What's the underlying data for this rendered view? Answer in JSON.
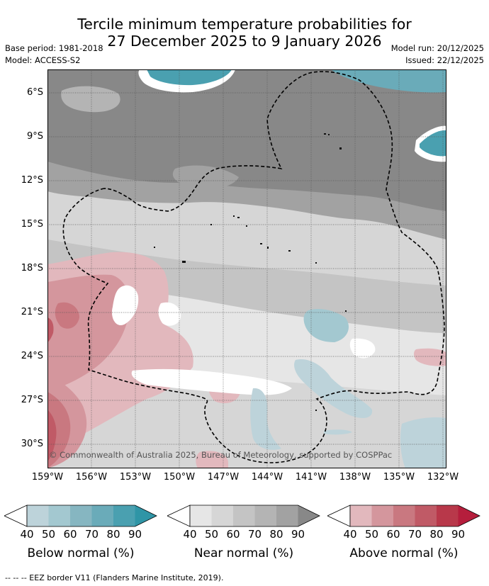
{
  "header": {
    "title_line1": "Tercile minimum temperature probabilities for",
    "title_line2": "27 December 2025 to 9 January 2026",
    "base_period": "Base period: 1981-2018",
    "model": "Model: ACCESS-S2",
    "model_run": "Model run: 20/12/2025",
    "issued": "Issued: 22/12/2025"
  },
  "map": {
    "copyright": "© Commonwealth of Australia 2025, Bureau of Meteorology, supported by COSPPac",
    "lat_labels": [
      "6°S",
      "9°S",
      "12°S",
      "15°S",
      "18°S",
      "21°S",
      "24°S",
      "27°S",
      "30°S"
    ],
    "lon_labels": [
      "159°W",
      "156°W",
      "153°W",
      "150°W",
      "147°W",
      "144°W",
      "141°W",
      "138°W",
      "135°W",
      "132°W"
    ]
  },
  "legend": {
    "ticks": [
      "40",
      "50",
      "60",
      "70",
      "80",
      "90"
    ],
    "below": {
      "label": "Below normal (%)",
      "colors": [
        "#bdd3da",
        "#a3c8d0",
        "#86b6c1",
        "#6aabb9",
        "#4aa0b0",
        "#2f95a6"
      ]
    },
    "near": {
      "label": "Near normal (%)",
      "colors": [
        "#e6e6e6",
        "#d6d6d6",
        "#c4c4c4",
        "#b4b4b4",
        "#a2a2a2",
        "#888888"
      ]
    },
    "above": {
      "label": "Above normal (%)",
      "colors": [
        "#e2b8bd",
        "#d4969d",
        "#c97880",
        "#c05a66",
        "#b8384a",
        "#b51e3c"
      ]
    }
  },
  "footnote": "-- -- -- EEZ border V11 (Flanders Marine Institute, 2019)."
}
